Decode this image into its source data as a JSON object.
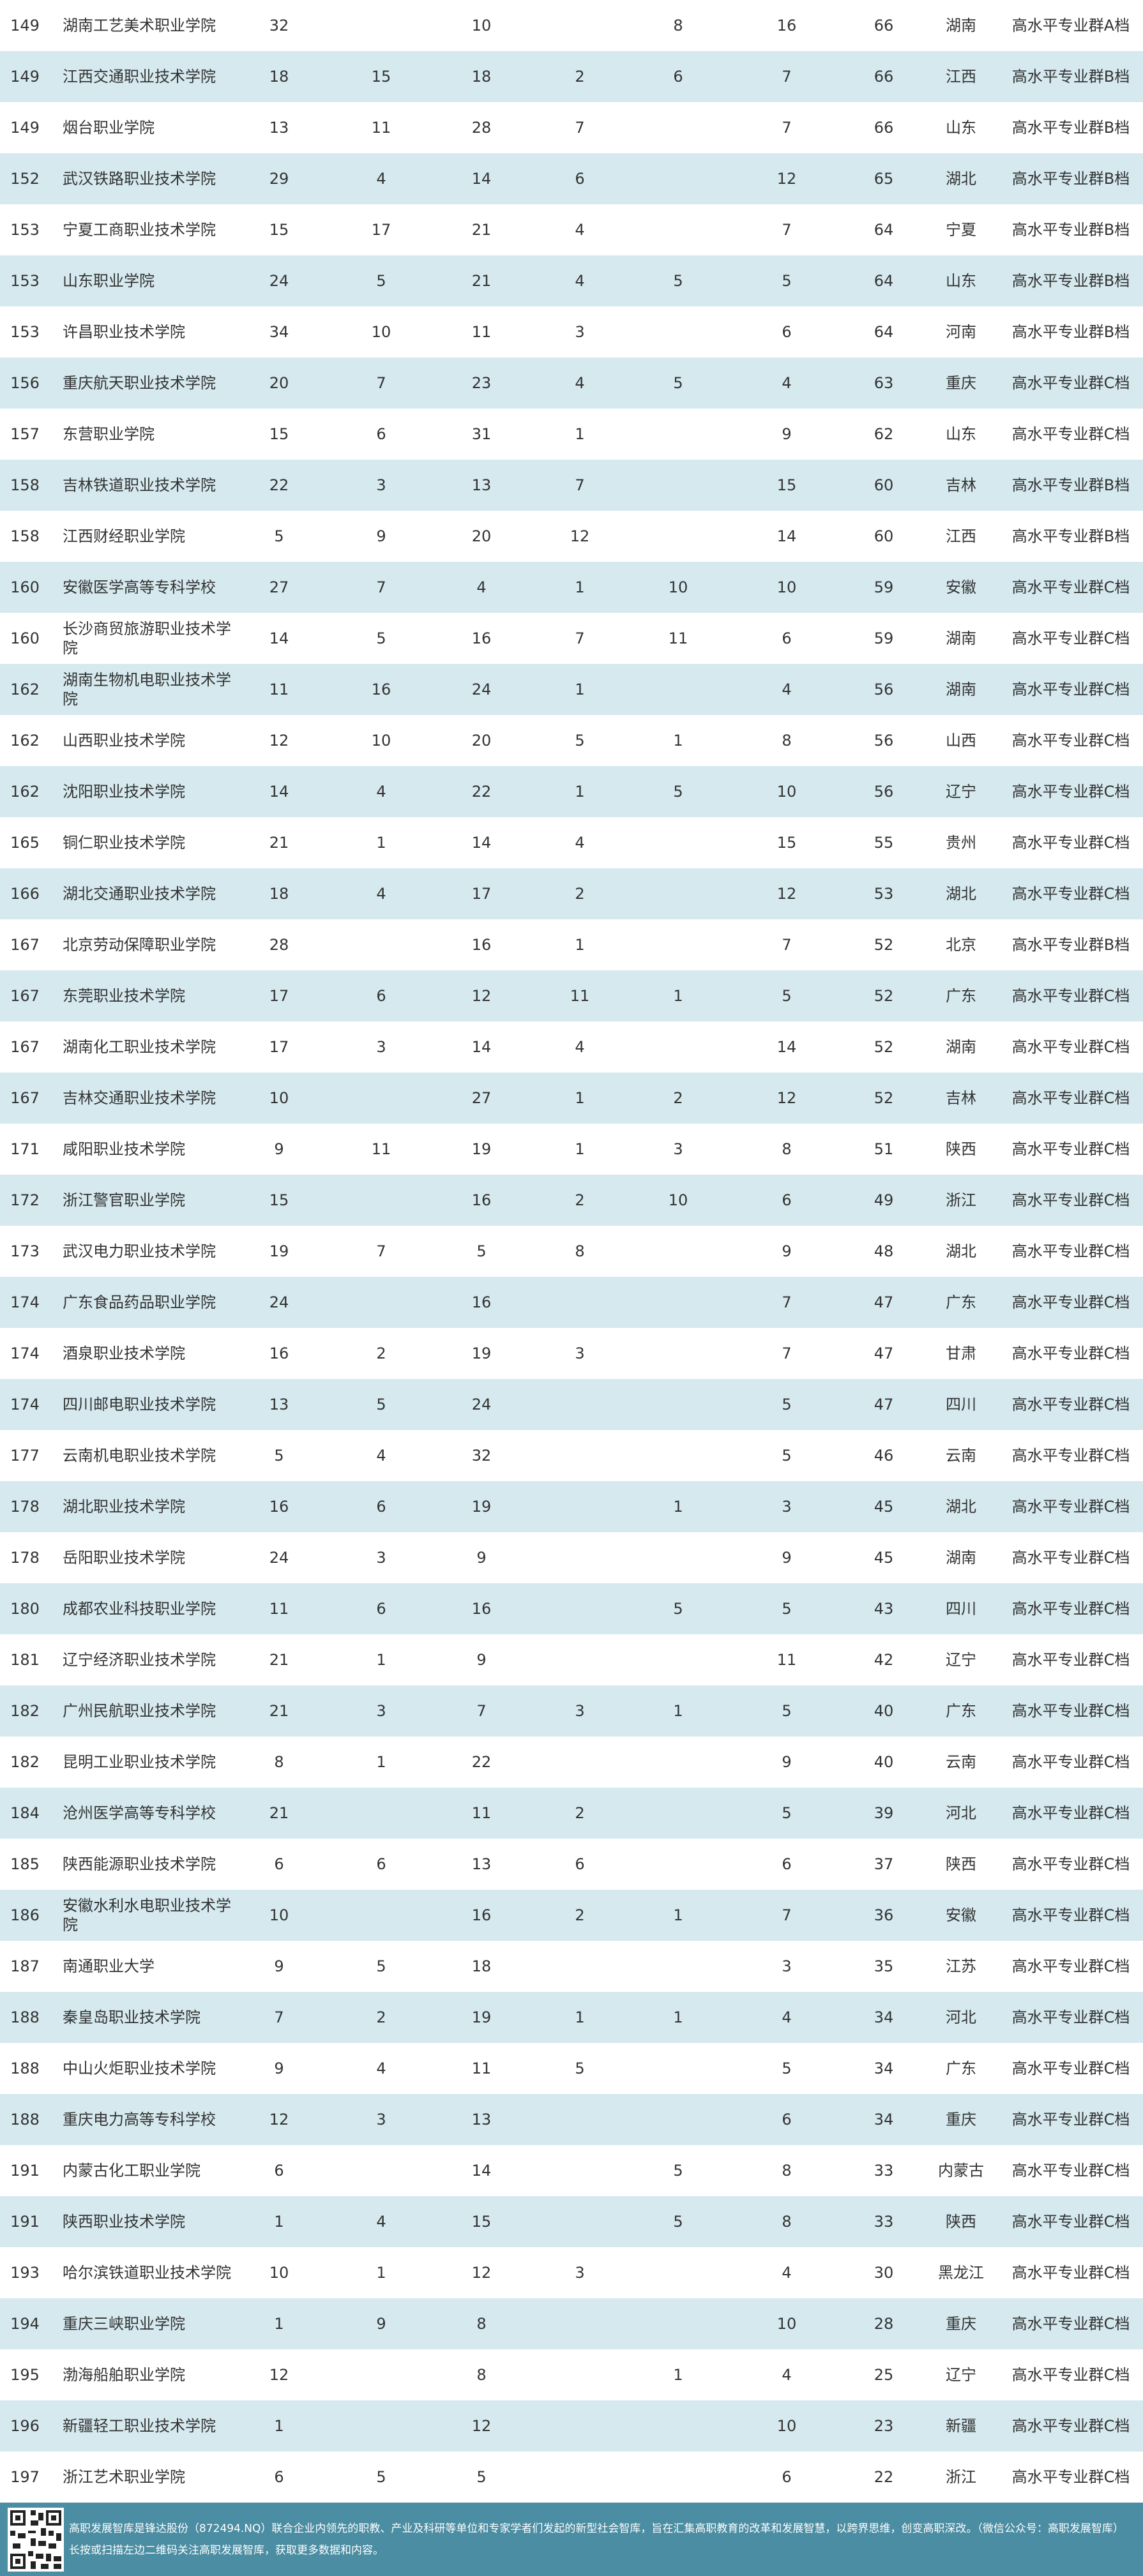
{
  "table": {
    "rows": [
      [
        "149",
        "湖南工艺美术职业学院",
        "32",
        null,
        "10",
        null,
        "8",
        "16",
        "66",
        "湖南",
        "高水平专业群A档"
      ],
      [
        "149",
        "江西交通职业技术学院",
        "18",
        "15",
        "18",
        "2",
        "6",
        "7",
        "66",
        "江西",
        "高水平专业群B档"
      ],
      [
        "149",
        "烟台职业学院",
        "13",
        "11",
        "28",
        "7",
        null,
        "7",
        "66",
        "山东",
        "高水平专业群B档"
      ],
      [
        "152",
        "武汉铁路职业技术学院",
        "29",
        "4",
        "14",
        "6",
        null,
        "12",
        "65",
        "湖北",
        "高水平专业群B档"
      ],
      [
        "153",
        "宁夏工商职业技术学院",
        "15",
        "17",
        "21",
        "4",
        null,
        "7",
        "64",
        "宁夏",
        "高水平专业群B档"
      ],
      [
        "153",
        "山东职业学院",
        "24",
        "5",
        "21",
        "4",
        "5",
        "5",
        "64",
        "山东",
        "高水平专业群B档"
      ],
      [
        "153",
        "许昌职业技术学院",
        "34",
        "10",
        "11",
        "3",
        null,
        "6",
        "64",
        "河南",
        "高水平专业群B档"
      ],
      [
        "156",
        "重庆航天职业技术学院",
        "20",
        "7",
        "23",
        "4",
        "5",
        "4",
        "63",
        "重庆",
        "高水平专业群C档"
      ],
      [
        "157",
        "东营职业学院",
        "15",
        "6",
        "31",
        "1",
        null,
        "9",
        "62",
        "山东",
        "高水平专业群C档"
      ],
      [
        "158",
        "吉林铁道职业技术学院",
        "22",
        "3",
        "13",
        "7",
        null,
        "15",
        "60",
        "吉林",
        "高水平专业群B档"
      ],
      [
        "158",
        "江西财经职业学院",
        "5",
        "9",
        "20",
        "12",
        null,
        "14",
        "60",
        "江西",
        "高水平专业群B档"
      ],
      [
        "160",
        "安徽医学高等专科学校",
        "27",
        "7",
        "4",
        "1",
        "10",
        "10",
        "59",
        "安徽",
        "高水平专业群C档"
      ],
      [
        "160",
        "长沙商贸旅游职业技术学院",
        "14",
        "5",
        "16",
        "7",
        "11",
        "6",
        "59",
        "湖南",
        "高水平专业群C档"
      ],
      [
        "162",
        "湖南生物机电职业技术学院",
        "11",
        "16",
        "24",
        "1",
        null,
        "4",
        "56",
        "湖南",
        "高水平专业群C档"
      ],
      [
        "162",
        "山西职业技术学院",
        "12",
        "10",
        "20",
        "5",
        "1",
        "8",
        "56",
        "山西",
        "高水平专业群C档"
      ],
      [
        "162",
        "沈阳职业技术学院",
        "14",
        "4",
        "22",
        "1",
        "5",
        "10",
        "56",
        "辽宁",
        "高水平专业群C档"
      ],
      [
        "165",
        "铜仁职业技术学院",
        "21",
        "1",
        "14",
        "4",
        null,
        "15",
        "55",
        "贵州",
        "高水平专业群C档"
      ],
      [
        "166",
        "湖北交通职业技术学院",
        "18",
        "4",
        "17",
        "2",
        null,
        "12",
        "53",
        "湖北",
        "高水平专业群C档"
      ],
      [
        "167",
        "北京劳动保障职业学院",
        "28",
        null,
        "16",
        "1",
        null,
        "7",
        "52",
        "北京",
        "高水平专业群B档"
      ],
      [
        "167",
        "东莞职业技术学院",
        "17",
        "6",
        "12",
        "11",
        "1",
        "5",
        "52",
        "广东",
        "高水平专业群C档"
      ],
      [
        "167",
        "湖南化工职业技术学院",
        "17",
        "3",
        "14",
        "4",
        null,
        "14",
        "52",
        "湖南",
        "高水平专业群C档"
      ],
      [
        "167",
        "吉林交通职业技术学院",
        "10",
        null,
        "27",
        "1",
        "2",
        "12",
        "52",
        "吉林",
        "高水平专业群C档"
      ],
      [
        "171",
        "咸阳职业技术学院",
        "9",
        "11",
        "19",
        "1",
        "3",
        "8",
        "51",
        "陕西",
        "高水平专业群C档"
      ],
      [
        "172",
        "浙江警官职业学院",
        "15",
        null,
        "16",
        "2",
        "10",
        "6",
        "49",
        "浙江",
        "高水平专业群C档"
      ],
      [
        "173",
        "武汉电力职业技术学院",
        "19",
        "7",
        "5",
        "8",
        null,
        "9",
        "48",
        "湖北",
        "高水平专业群C档"
      ],
      [
        "174",
        "广东食品药品职业学院",
        "24",
        null,
        "16",
        null,
        null,
        "7",
        "47",
        "广东",
        "高水平专业群C档"
      ],
      [
        "174",
        "酒泉职业技术学院",
        "16",
        "2",
        "19",
        "3",
        null,
        "7",
        "47",
        "甘肃",
        "高水平专业群C档"
      ],
      [
        "174",
        "四川邮电职业技术学院",
        "13",
        "5",
        "24",
        null,
        null,
        "5",
        "47",
        "四川",
        "高水平专业群C档"
      ],
      [
        "177",
        "云南机电职业技术学院",
        "5",
        "4",
        "32",
        null,
        null,
        "5",
        "46",
        "云南",
        "高水平专业群C档"
      ],
      [
        "178",
        "湖北职业技术学院",
        "16",
        "6",
        "19",
        null,
        "1",
        "3",
        "45",
        "湖北",
        "高水平专业群C档"
      ],
      [
        "178",
        "岳阳职业技术学院",
        "24",
        "3",
        "9",
        null,
        null,
        "9",
        "45",
        "湖南",
        "高水平专业群C档"
      ],
      [
        "180",
        "成都农业科技职业学院",
        "11",
        "6",
        "16",
        null,
        "5",
        "5",
        "43",
        "四川",
        "高水平专业群C档"
      ],
      [
        "181",
        "辽宁经济职业技术学院",
        "21",
        "1",
        "9",
        null,
        null,
        "11",
        "42",
        "辽宁",
        "高水平专业群C档"
      ],
      [
        "182",
        "广州民航职业技术学院",
        "21",
        "3",
        "7",
        "3",
        "1",
        "5",
        "40",
        "广东",
        "高水平专业群C档"
      ],
      [
        "182",
        "昆明工业职业技术学院",
        "8",
        "1",
        "22",
        null,
        null,
        "9",
        "40",
        "云南",
        "高水平专业群C档"
      ],
      [
        "184",
        "沧州医学高等专科学校",
        "21",
        null,
        "11",
        "2",
        null,
        "5",
        "39",
        "河北",
        "高水平专业群C档"
      ],
      [
        "185",
        "陕西能源职业技术学院",
        "6",
        "6",
        "13",
        "6",
        null,
        "6",
        "37",
        "陕西",
        "高水平专业群C档"
      ],
      [
        "186",
        "安徽水利水电职业技术学院",
        "10",
        null,
        "16",
        "2",
        "1",
        "7",
        "36",
        "安徽",
        "高水平专业群C档"
      ],
      [
        "187",
        "南通职业大学",
        "9",
        "5",
        "18",
        null,
        null,
        "3",
        "35",
        "江苏",
        "高水平专业群C档"
      ],
      [
        "188",
        "秦皇岛职业技术学院",
        "7",
        "2",
        "19",
        "1",
        "1",
        "4",
        "34",
        "河北",
        "高水平专业群C档"
      ],
      [
        "188",
        "中山火炬职业技术学院",
        "9",
        "4",
        "11",
        "5",
        null,
        "5",
        "34",
        "广东",
        "高水平专业群C档"
      ],
      [
        "188",
        "重庆电力高等专科学校",
        "12",
        "3",
        "13",
        null,
        null,
        "6",
        "34",
        "重庆",
        "高水平专业群C档"
      ],
      [
        "191",
        "内蒙古化工职业学院",
        "6",
        null,
        "14",
        null,
        "5",
        "8",
        "33",
        "内蒙古",
        "高水平专业群C档"
      ],
      [
        "191",
        "陕西职业技术学院",
        "1",
        "4",
        "15",
        null,
        "5",
        "8",
        "33",
        "陕西",
        "高水平专业群C档"
      ],
      [
        "193",
        "哈尔滨铁道职业技术学院",
        "10",
        "1",
        "12",
        "3",
        null,
        "4",
        "30",
        "黑龙江",
        "高水平专业群C档"
      ],
      [
        "194",
        "重庆三峡职业学院",
        "1",
        "9",
        "8",
        null,
        null,
        "10",
        "28",
        "重庆",
        "高水平专业群C档"
      ],
      [
        "195",
        "渤海船舶职业学院",
        "12",
        null,
        "8",
        null,
        "1",
        "4",
        "25",
        "辽宁",
        "高水平专业群C档"
      ],
      [
        "196",
        "新疆轻工职业技术学院",
        "1",
        null,
        "12",
        null,
        null,
        "10",
        "23",
        "新疆",
        "高水平专业群C档"
      ],
      [
        "197",
        "浙江艺术职业学院",
        "6",
        "5",
        "5",
        null,
        null,
        "6",
        "22",
        "浙江",
        "高水平专业群C档"
      ]
    ]
  },
  "footer": {
    "line1": "高职发展智库是锋达股份（872494.NQ）联合企业内领先的职教、产业及科研等单位和专家学者们发起的新型社会智库，旨在汇集高职教育的改革和发展智慧，以跨界思维，创变高职深改。（微信公众号：高职发展智库）",
    "line2": "长按或扫描左边二维码关注高职发展智库，获取更多数据和内容。"
  }
}
